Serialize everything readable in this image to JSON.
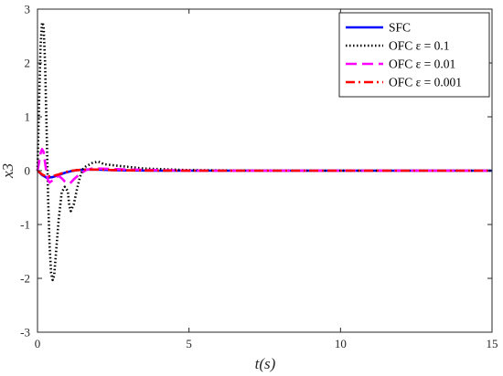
{
  "chart_data": {
    "type": "line",
    "xlabel": "t(s)",
    "ylabel": "x3",
    "xlim": [
      0,
      15
    ],
    "ylim": [
      -3,
      3
    ],
    "x_ticks": [
      0,
      5,
      10,
      15
    ],
    "y_ticks": [
      -3,
      -2,
      -1,
      0,
      1,
      2,
      3
    ],
    "grid": false,
    "legend_position": "top-right",
    "series": [
      {
        "name": "SFC",
        "legend_text": "SFC",
        "color": "#0000ff",
        "dash": "solid",
        "x": [
          0,
          0.15,
          0.3,
          0.5,
          0.7,
          0.9,
          1.1,
          1.3,
          1.6,
          2.0,
          2.5,
          3.0,
          4.0,
          5.0,
          7.0,
          10.0,
          15.0
        ],
        "y": [
          0,
          -0.08,
          -0.13,
          -0.12,
          -0.08,
          -0.04,
          -0.01,
          0.01,
          0.02,
          0.02,
          0.01,
          0.005,
          0,
          0,
          0,
          0,
          0
        ]
      },
      {
        "name": "OFC ε = 0.1",
        "legend_text": "OFC ε = 0.1",
        "color": "#000000",
        "dash": "dotted",
        "x": [
          0,
          0.05,
          0.1,
          0.15,
          0.2,
          0.25,
          0.3,
          0.35,
          0.4,
          0.45,
          0.5,
          0.55,
          0.6,
          0.7,
          0.8,
          0.9,
          1.0,
          1.05,
          1.1,
          1.2,
          1.3,
          1.4,
          1.5,
          1.6,
          1.8,
          2.0,
          2.2,
          2.5,
          3.0,
          3.5,
          4.0,
          4.5,
          5.0,
          6.0,
          8.0,
          10.0,
          15.0
        ],
        "y": [
          0,
          1.2,
          2.3,
          2.75,
          2.7,
          2.0,
          0.8,
          -0.5,
          -1.4,
          -1.9,
          -2.03,
          -1.95,
          -1.6,
          -0.9,
          -0.4,
          -0.3,
          -0.38,
          -0.65,
          -0.75,
          -0.62,
          -0.35,
          -0.12,
          0.03,
          0.08,
          0.14,
          0.17,
          0.12,
          0.1,
          0.07,
          0.04,
          0.03,
          0.02,
          0.01,
          0.005,
          0,
          0,
          0
        ]
      },
      {
        "name": "OFC ε = 0.01",
        "legend_text": "OFC ε = 0.01",
        "color": "#ff00ff",
        "dash": "dashed",
        "x": [
          0,
          0.05,
          0.1,
          0.15,
          0.2,
          0.25,
          0.3,
          0.35,
          0.4,
          0.5,
          0.6,
          0.7,
          0.8,
          0.9,
          1.0,
          1.1,
          1.2,
          1.4,
          1.6,
          1.8,
          2.0,
          2.5,
          3.0,
          4.0,
          5.0,
          7.0,
          10.0,
          15.0
        ],
        "y": [
          0,
          0.15,
          0.32,
          0.4,
          0.35,
          0.15,
          -0.05,
          -0.18,
          -0.22,
          -0.18,
          -0.12,
          -0.1,
          -0.14,
          -0.2,
          -0.24,
          -0.22,
          -0.16,
          -0.06,
          0.01,
          0.04,
          0.04,
          0.03,
          0.02,
          0.01,
          0,
          0,
          0,
          0
        ]
      },
      {
        "name": "OFC ε = 0.001",
        "legend_text": "OFC ε = 0.001",
        "color": "#ff0000",
        "dash": "dashdot",
        "x": [
          0,
          0.15,
          0.3,
          0.5,
          0.7,
          0.9,
          1.1,
          1.3,
          1.6,
          2.0,
          2.5,
          3.0,
          4.0,
          5.0,
          7.0,
          10.0,
          15.0
        ],
        "y": [
          0,
          -0.07,
          -0.11,
          -0.1,
          -0.07,
          -0.03,
          -0.005,
          0.01,
          0.02,
          0.02,
          0.01,
          0.005,
          0,
          0,
          0,
          0,
          0
        ]
      }
    ]
  }
}
